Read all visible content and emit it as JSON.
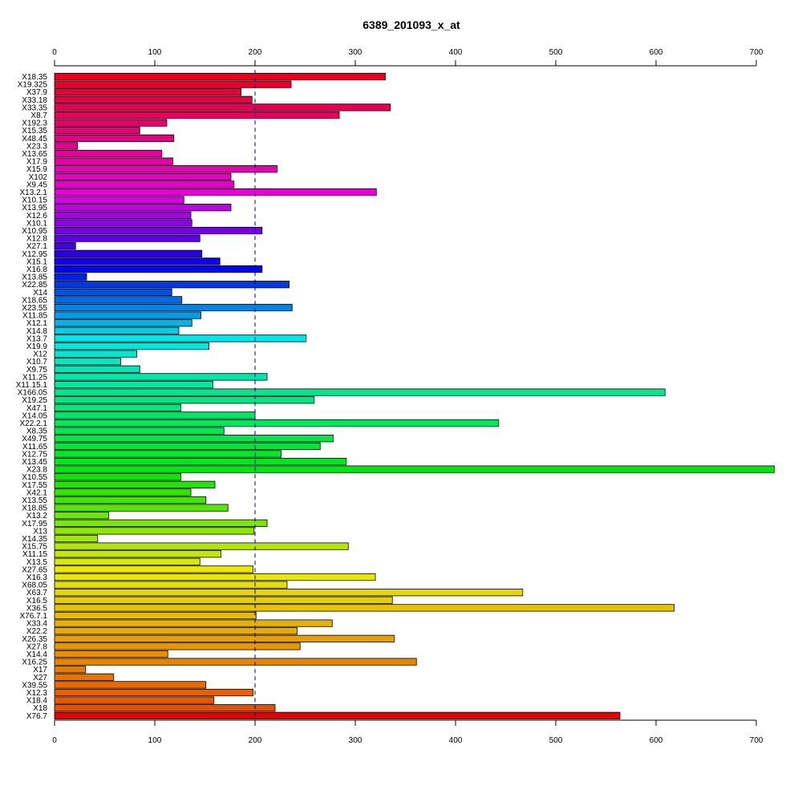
{
  "chart_data": {
    "type": "bar",
    "orientation": "horizontal",
    "title": "6389_201093_x_at",
    "xlabel": "",
    "ylabel": "",
    "xlim": [
      0,
      720
    ],
    "ticks": [
      0,
      100,
      200,
      300,
      400,
      500,
      600,
      700
    ],
    "reference_line": 200,
    "grid": false,
    "categories": [
      "X18.35",
      "X19.325",
      "X37.9",
      "X33.18",
      "X33.35",
      "X8.7",
      "X192.3",
      "X15.35",
      "X48.45",
      "X23.3",
      "X13.65",
      "X17.9",
      "X15.9",
      "X102",
      "X9.45",
      "X13.2.1",
      "X10.15",
      "X13.95",
      "X12.6",
      "X10.1",
      "X10.95",
      "X12.8",
      "X27.1",
      "X12.95",
      "X15.1",
      "X16.8",
      "X13.85",
      "X22.85",
      "X14",
      "X18.65",
      "X23.55",
      "X11.85",
      "X12.1",
      "X14.8",
      "X13.7",
      "X19.9",
      "X12",
      "X10.7",
      "X9.75",
      "X11.25",
      "X11.15.1",
      "X166.05",
      "X19.25",
      "X47.1",
      "X14.05",
      "X22.2.1",
      "X8.35",
      "X49.75",
      "X11.65",
      "X12.75",
      "X13.45",
      "X23.8",
      "X10.55",
      "X17.55",
      "X42.1",
      "X13.55",
      "X18.85",
      "X13.2",
      "X17.95",
      "X13",
      "X14.35",
      "X15.75",
      "X11.15",
      "X13.5",
      "X27.65",
      "X16.3",
      "X68.05",
      "X63.7",
      "X16.5",
      "X36.5",
      "X76.7.1",
      "X33.4",
      "X22.2",
      "X26.35",
      "X27.8",
      "X14.4",
      "X16.25",
      "X17",
      "X27",
      "X39.55",
      "X12.3",
      "X18.4",
      "X18",
      "X76.7"
    ],
    "values": [
      330,
      236,
      186,
      197,
      335,
      284,
      112,
      85,
      119,
      23,
      107,
      118,
      222,
      176,
      179,
      321,
      129,
      176,
      136,
      137,
      207,
      145,
      21,
      147,
      165,
      207,
      32,
      234,
      117,
      127,
      237,
      146,
      137,
      124,
      251,
      154,
      82,
      66,
      85,
      212,
      158,
      609,
      259,
      126,
      200,
      443,
      169,
      278,
      265,
      226,
      291,
      718,
      126,
      160,
      136,
      151,
      173,
      54,
      212,
      199,
      43,
      293,
      166,
      145,
      198,
      320,
      232,
      467,
      337,
      618,
      201,
      277,
      242,
      339,
      245,
      113,
      361,
      31,
      59,
      151,
      198,
      159,
      220,
      564
    ],
    "colors": [
      "#E8001E",
      "#E8002A",
      "#E80037",
      "#E80043",
      "#E80050",
      "#E8005C",
      "#E80069",
      "#E80075",
      "#E80082",
      "#E8008E",
      "#E8009B",
      "#E800A7",
      "#E800B4",
      "#E800C0",
      "#E800CD",
      "#E800D9",
      "#D900E8",
      "#C000E8",
      "#A700E8",
      "#8E00E8",
      "#7500E8",
      "#5C00E8",
      "#4300E8",
      "#2A00E8",
      "#1100E8",
      "#0007E8",
      "#0020E8",
      "#0039E8",
      "#0052E8",
      "#006BE8",
      "#0084E8",
      "#009DE8",
      "#00B6E8",
      "#00CFE8",
      "#00E8E8",
      "#00E8D9",
      "#00E8CD",
      "#00E8C0",
      "#00E8B4",
      "#00E8A7",
      "#00E89B",
      "#00E88E",
      "#00E882",
      "#00E875",
      "#00E869",
      "#00E85C",
      "#00E850",
      "#00E843",
      "#00E837",
      "#00E82A",
      "#00E81E",
      "#00E811",
      "#0BE800",
      "#1EE800",
      "#30E800",
      "#43E800",
      "#56E800",
      "#69E800",
      "#7BE800",
      "#8EE800",
      "#A1E800",
      "#B4E800",
      "#C6E800",
      "#D9E800",
      "#ECE800",
      "#E8E800",
      "#E8DF00",
      "#E8D600",
      "#E8CD00",
      "#E8C400",
      "#E8BB00",
      "#E8B200",
      "#E8A900",
      "#E8A000",
      "#E89700",
      "#E88E00",
      "#E88500",
      "#E87C00",
      "#E87300",
      "#E86A00",
      "#E86100",
      "#E85800",
      "#E84F00",
      "#E80000"
    ]
  }
}
